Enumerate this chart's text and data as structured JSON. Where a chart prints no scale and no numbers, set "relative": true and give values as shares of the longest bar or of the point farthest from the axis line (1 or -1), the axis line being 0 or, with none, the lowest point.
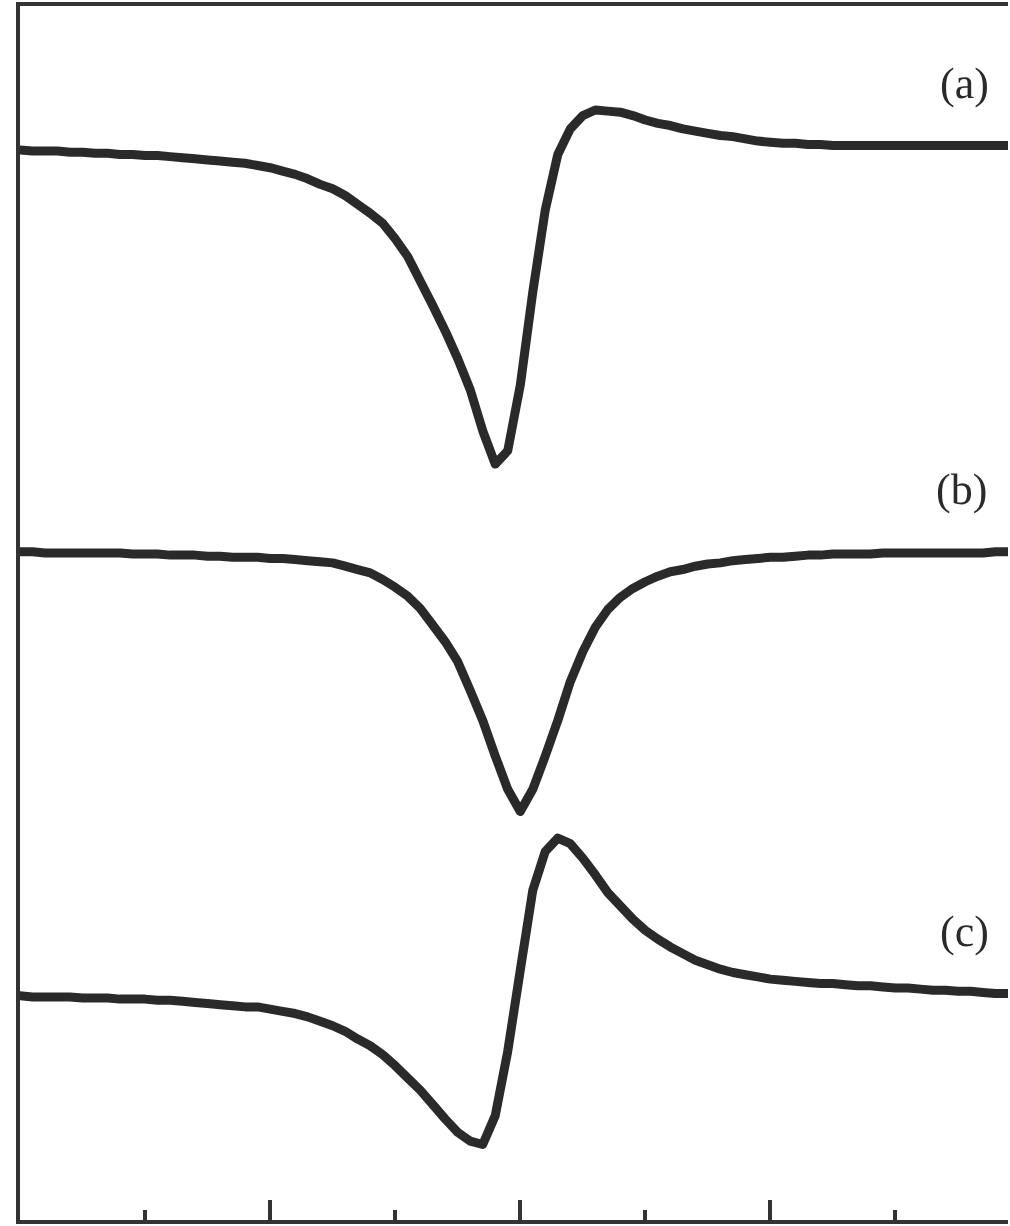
{
  "chart_data": {
    "type": "line",
    "relative": true,
    "categories": [
      null,
      null,
      null,
      null,
      null,
      null,
      null,
      null,
      null,
      null,
      null,
      null,
      null,
      null,
      null,
      null,
      null,
      null,
      null,
      null,
      null,
      null,
      null,
      null,
      null,
      null,
      null,
      null,
      null,
      null,
      null,
      null,
      null,
      null,
      null,
      null,
      null,
      null,
      null,
      null,
      null,
      null,
      null,
      null,
      null,
      null,
      null,
      null,
      null,
      null,
      null,
      null,
      null,
      null,
      null,
      null,
      null,
      null,
      null,
      null,
      null,
      null,
      null,
      null,
      null,
      null,
      null,
      null,
      null,
      null,
      null,
      null,
      null,
      null,
      null,
      null,
      null,
      null,
      null,
      null
    ],
    "series": [
      {
        "name": "(a)",
        "color": "#2a2a2a",
        "values": [
          0.964,
          0.963,
          0.963,
          0.963,
          0.962,
          0.962,
          0.961,
          0.961,
          0.96,
          0.96,
          0.959,
          0.959,
          0.958,
          0.957,
          0.956,
          0.955,
          0.954,
          0.953,
          0.952,
          0.95,
          0.948,
          0.945,
          0.942,
          0.938,
          0.933,
          0.929,
          0.923,
          0.915,
          0.907,
          0.898,
          0.884,
          0.868,
          0.846,
          0.824,
          0.801,
          0.776,
          0.748,
          0.711,
          0.681,
          0.693,
          0.752,
          0.836,
          0.91,
          0.96,
          0.983,
          0.995,
          1.0,
          0.999,
          0.998,
          0.995,
          0.991,
          0.988,
          0.986,
          0.983,
          0.981,
          0.979,
          0.977,
          0.976,
          0.974,
          0.972,
          0.971,
          0.97,
          0.97,
          0.969,
          0.969,
          0.968,
          0.968,
          0.968,
          0.968,
          0.968,
          0.968,
          0.968,
          0.968,
          0.968,
          0.968,
          0.968,
          0.968,
          0.968,
          0.968,
          0.968
        ]
      },
      {
        "name": "(b)",
        "color": "#2a2a2a",
        "values": [
          0.602,
          0.602,
          0.601,
          0.601,
          0.601,
          0.601,
          0.601,
          0.601,
          0.601,
          0.6,
          0.6,
          0.6,
          0.599,
          0.599,
          0.599,
          0.598,
          0.598,
          0.597,
          0.597,
          0.597,
          0.596,
          0.596,
          0.595,
          0.594,
          0.593,
          0.592,
          0.589,
          0.586,
          0.583,
          0.577,
          0.57,
          0.562,
          0.551,
          0.536,
          0.521,
          0.503,
          0.477,
          0.45,
          0.418,
          0.388,
          0.368,
          0.388,
          0.418,
          0.45,
          0.485,
          0.512,
          0.534,
          0.55,
          0.561,
          0.569,
          0.575,
          0.58,
          0.584,
          0.586,
          0.589,
          0.591,
          0.592,
          0.594,
          0.595,
          0.596,
          0.597,
          0.597,
          0.598,
          0.599,
          0.599,
          0.6,
          0.6,
          0.6,
          0.6,
          0.601,
          0.601,
          0.601,
          0.601,
          0.601,
          0.601,
          0.601,
          0.601,
          0.601,
          0.602,
          0.602
        ]
      },
      {
        "name": "(c)",
        "color": "#2a2a2a",
        "values": [
          0.202,
          0.201,
          0.201,
          0.201,
          0.201,
          0.2,
          0.2,
          0.2,
          0.199,
          0.199,
          0.199,
          0.198,
          0.198,
          0.197,
          0.196,
          0.195,
          0.194,
          0.193,
          0.192,
          0.192,
          0.19,
          0.188,
          0.186,
          0.183,
          0.179,
          0.175,
          0.17,
          0.163,
          0.157,
          0.149,
          0.139,
          0.128,
          0.117,
          0.104,
          0.091,
          0.079,
          0.071,
          0.068,
          0.094,
          0.152,
          0.225,
          0.297,
          0.332,
          0.344,
          0.339,
          0.326,
          0.311,
          0.295,
          0.283,
          0.271,
          0.261,
          0.253,
          0.246,
          0.24,
          0.234,
          0.23,
          0.226,
          0.223,
          0.221,
          0.219,
          0.217,
          0.216,
          0.215,
          0.214,
          0.213,
          0.213,
          0.212,
          0.211,
          0.211,
          0.21,
          0.209,
          0.209,
          0.208,
          0.207,
          0.207,
          0.206,
          0.206,
          0.205,
          0.204,
          0.204
        ]
      }
    ]
  }
}
